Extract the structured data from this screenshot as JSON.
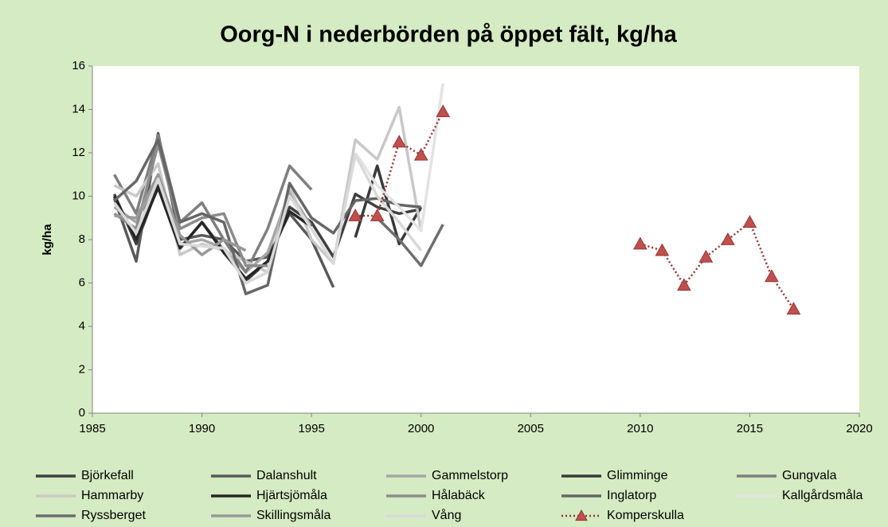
{
  "chart_data": {
    "type": "line",
    "title": "Oorg-N i nederbörden på öppet fält, kg/ha",
    "y_label": "kg/ha",
    "x": [
      1986,
      1987,
      1988,
      1989,
      1990,
      1991,
      1992,
      1993,
      1994,
      1995,
      1996,
      1997,
      1998,
      1999,
      2000,
      2001,
      2002,
      2003,
      2004,
      2005,
      2006,
      2007,
      2008,
      2009,
      2010,
      2011,
      2012,
      2013,
      2014,
      2015,
      2016,
      2017
    ],
    "xlim": [
      1985,
      2020
    ],
    "xticks": [
      1985,
      1990,
      1995,
      2000,
      2005,
      2010,
      2015,
      2020
    ],
    "ylim": [
      0,
      16
    ],
    "yticks": [
      0,
      2,
      4,
      6,
      8,
      10,
      12,
      14,
      16
    ],
    "grid": false,
    "legend": "bottom",
    "series": [
      {
        "name": "Björkefall",
        "color": "#404040",
        "values": [
          10.1,
          7.8,
          10.5,
          7.6,
          8.8,
          7.5,
          6.1,
          7.0,
          9.5,
          8.8,
          7.2,
          10.1,
          9.5,
          9.2,
          9.4,
          null,
          null,
          null,
          null,
          null,
          null,
          null,
          null,
          null,
          null,
          null,
          null,
          null,
          null,
          null,
          null,
          null
        ]
      },
      {
        "name": "Dalanshult",
        "color": "#595959",
        "values": [
          9.9,
          7.0,
          12.9,
          8.0,
          8.2,
          8.0,
          7.0,
          7.2,
          9.2,
          8.0,
          5.8,
          null,
          null,
          null,
          null,
          null,
          null,
          null,
          null,
          null,
          null,
          null,
          null,
          null,
          null,
          null,
          null,
          null,
          null,
          null,
          null,
          null
        ]
      },
      {
        "name": "Gammelstorp",
        "color": "#a6a6a6",
        "values": [
          9.5,
          8.8,
          11.0,
          7.8,
          8.0,
          7.6,
          6.5,
          7.4,
          10.2,
          8.6,
          null,
          null,
          null,
          null,
          null,
          null,
          null,
          null,
          null,
          null,
          null,
          null,
          null,
          null,
          null,
          null,
          null,
          null,
          null,
          null,
          null,
          null
        ]
      },
      {
        "name": "Glimminge",
        "color": "#3a3a3a",
        "values": [
          null,
          null,
          null,
          null,
          null,
          null,
          null,
          null,
          null,
          null,
          null,
          8.1,
          11.4,
          7.8,
          9.5,
          null,
          null,
          null,
          null,
          null,
          null,
          null,
          null,
          null,
          null,
          null,
          null,
          null,
          null,
          null,
          null,
          null
        ]
      },
      {
        "name": "Gungvala",
        "color": "#7f7f7f",
        "values": [
          11.0,
          9.2,
          12.8,
          8.8,
          9.7,
          8.0,
          6.5,
          8.5,
          11.4,
          10.3,
          null,
          null,
          null,
          null,
          null,
          null,
          null,
          null,
          null,
          null,
          null,
          null,
          null,
          null,
          null,
          null,
          null,
          null,
          null,
          null,
          null,
          null
        ]
      },
      {
        "name": "Hammarby",
        "color": "#c8c8c8",
        "values": [
          10.5,
          10.0,
          11.5,
          7.3,
          7.8,
          7.5,
          7.0,
          6.5,
          10.5,
          8.0,
          6.9,
          12.6,
          11.7,
          14.1,
          8.4,
          null,
          null,
          null,
          null,
          null,
          null,
          null,
          null,
          null,
          null,
          null,
          null,
          null,
          null,
          null,
          null,
          null
        ]
      },
      {
        "name": "Hjärtsjömåla",
        "color": "#262626",
        "values": [
          10.0,
          8.0,
          10.4,
          7.6,
          8.8,
          7.4,
          6.2,
          7.0,
          9.3,
          8.6,
          null,
          null,
          null,
          null,
          null,
          null,
          null,
          null,
          null,
          null,
          null,
          null,
          null,
          null,
          null,
          null,
          null,
          null,
          null,
          null,
          null,
          null
        ]
      },
      {
        "name": "Hålabäck",
        "color": "#8c8c8c",
        "values": [
          9.2,
          8.5,
          12.4,
          8.5,
          9.0,
          9.2,
          6.8,
          6.8,
          null,
          null,
          null,
          null,
          null,
          null,
          null,
          null,
          null,
          null,
          null,
          null,
          null,
          null,
          null,
          null,
          null,
          null,
          null,
          null,
          null,
          null,
          null,
          null
        ]
      },
      {
        "name": "Inglatorp",
        "color": "#666666",
        "values": [
          9.8,
          10.7,
          12.6,
          8.8,
          9.2,
          8.8,
          5.5,
          5.9,
          10.6,
          9.0,
          8.3,
          9.8,
          9.9,
          9.6,
          9.5,
          null,
          null,
          null,
          null,
          null,
          null,
          null,
          null,
          null,
          null,
          null,
          null,
          null,
          null,
          null,
          null,
          null
        ]
      },
      {
        "name": "Kallgårdsmåla",
        "color": "#e3e3e3",
        "values": [
          null,
          null,
          null,
          null,
          null,
          null,
          null,
          null,
          null,
          null,
          null,
          12.0,
          10.5,
          9.5,
          8.4,
          15.2,
          null,
          null,
          null,
          null,
          null,
          null,
          null,
          null,
          null,
          null,
          null,
          null,
          null,
          null,
          null,
          null
        ]
      },
      {
        "name": "Ryssberget",
        "color": "#6e6e6e",
        "values": [
          null,
          null,
          null,
          null,
          null,
          null,
          null,
          null,
          null,
          null,
          null,
          null,
          9.0,
          8.0,
          6.8,
          8.7,
          null,
          null,
          null,
          null,
          null,
          null,
          null,
          null,
          null,
          null,
          null,
          null,
          null,
          null,
          null,
          null
        ]
      },
      {
        "name": "Skillingsmåla",
        "color": "#999999",
        "values": [
          9.1,
          9.0,
          11.0,
          8.2,
          7.3,
          8.0,
          7.5,
          null,
          null,
          null,
          null,
          null,
          null,
          null,
          null,
          null,
          null,
          null,
          null,
          null,
          null,
          null,
          null,
          null,
          null,
          null,
          null,
          null,
          null,
          null,
          null,
          null
        ]
      },
      {
        "name": "Vång",
        "color": "#d9d9d9",
        "values": [
          9.7,
          8.3,
          10.8,
          7.8,
          7.7,
          7.6,
          6.0,
          6.5,
          10.0,
          8.5,
          6.9,
          11.9,
          10.0,
          8.8,
          7.5,
          null,
          null,
          null,
          null,
          null,
          null,
          null,
          null,
          null,
          null,
          null,
          null,
          null,
          null,
          null,
          null,
          null
        ]
      },
      {
        "name": "Komperskulla",
        "color": "#943634",
        "marker_color": "#c0504d",
        "marker": "triangle",
        "dash": "dotted",
        "values": [
          null,
          null,
          null,
          null,
          null,
          null,
          null,
          null,
          null,
          null,
          null,
          9.1,
          9.1,
          12.5,
          11.9,
          13.9,
          null,
          null,
          null,
          null,
          null,
          null,
          null,
          null,
          7.8,
          7.5,
          5.9,
          7.2,
          8.0,
          8.8,
          6.3,
          4.8
        ]
      }
    ]
  }
}
